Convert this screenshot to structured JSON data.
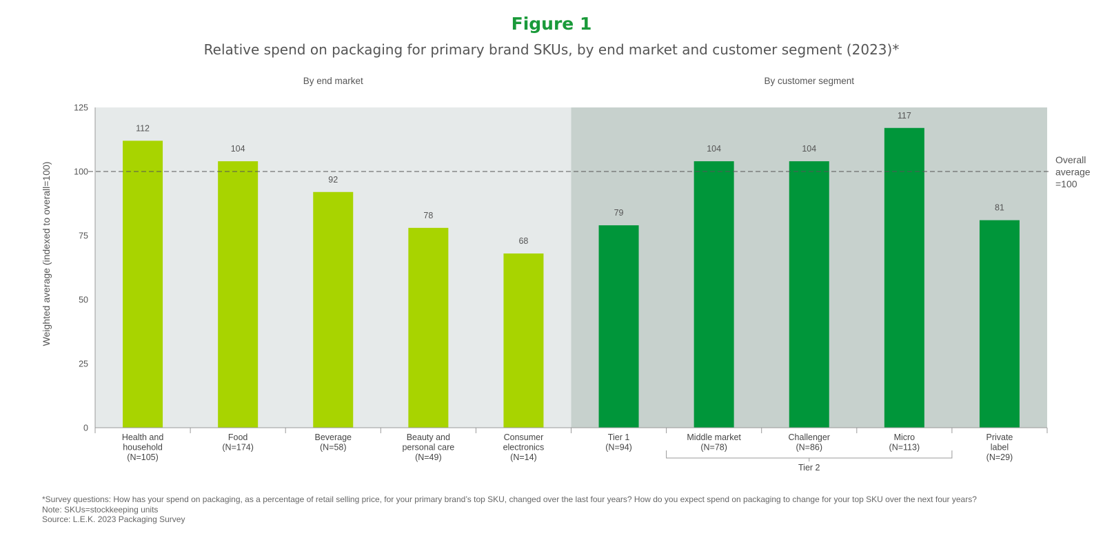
{
  "figure_label": "Figure 1",
  "title": "Relative spend on packaging for primary brand SKUs, by end market and customer segment (2023)*",
  "chart_data": {
    "type": "bar",
    "ylabel": "Weighted average (indexed to overall=100)",
    "ylim": [
      0,
      125
    ],
    "yticks": [
      "0",
      "25",
      "50",
      "75",
      "100",
      "125"
    ],
    "panels": [
      {
        "label": "By end market",
        "color": "#a8d400",
        "background": "#e6eaea",
        "categories": [
          [
            "Health and",
            "household",
            "(N=105)"
          ],
          [
            "Food",
            "(N=174)"
          ],
          [
            "Beverage",
            "(N=58)"
          ],
          [
            "Beauty and",
            "personal care",
            "(N=49)"
          ],
          [
            "Consumer",
            "electronics",
            "(N=14)"
          ]
        ],
        "values": [
          112,
          104,
          92,
          78,
          68
        ]
      },
      {
        "label": "By customer segment",
        "color": "#00963a",
        "background": "#c7d1cd",
        "categories": [
          [
            "Tier 1",
            "(N=94)"
          ],
          [
            "Middle market",
            "(N=78)"
          ],
          [
            "Challenger",
            "(N=86)"
          ],
          [
            "Micro",
            "(N=113)"
          ],
          [
            "Private",
            "label",
            "(N=29)"
          ]
        ],
        "values": [
          79,
          104,
          104,
          117,
          81
        ]
      }
    ],
    "reference_line": {
      "value": 100,
      "label": [
        "Overall",
        "average",
        "=100"
      ]
    },
    "bracket": {
      "label": "Tier 2",
      "from": 1,
      "to": 3
    }
  },
  "footnotes": [
    "*Survey questions: How has your spend on packaging, as a percentage of retail selling price, for your primary brand’s top SKU, changed over the last four years? How do you expect spend on packaging to change for your top SKU over the next four  years?",
    "Note: SKUs=stockkeeping units",
    "Source: L.E.K. 2023 Packaging Survey"
  ]
}
